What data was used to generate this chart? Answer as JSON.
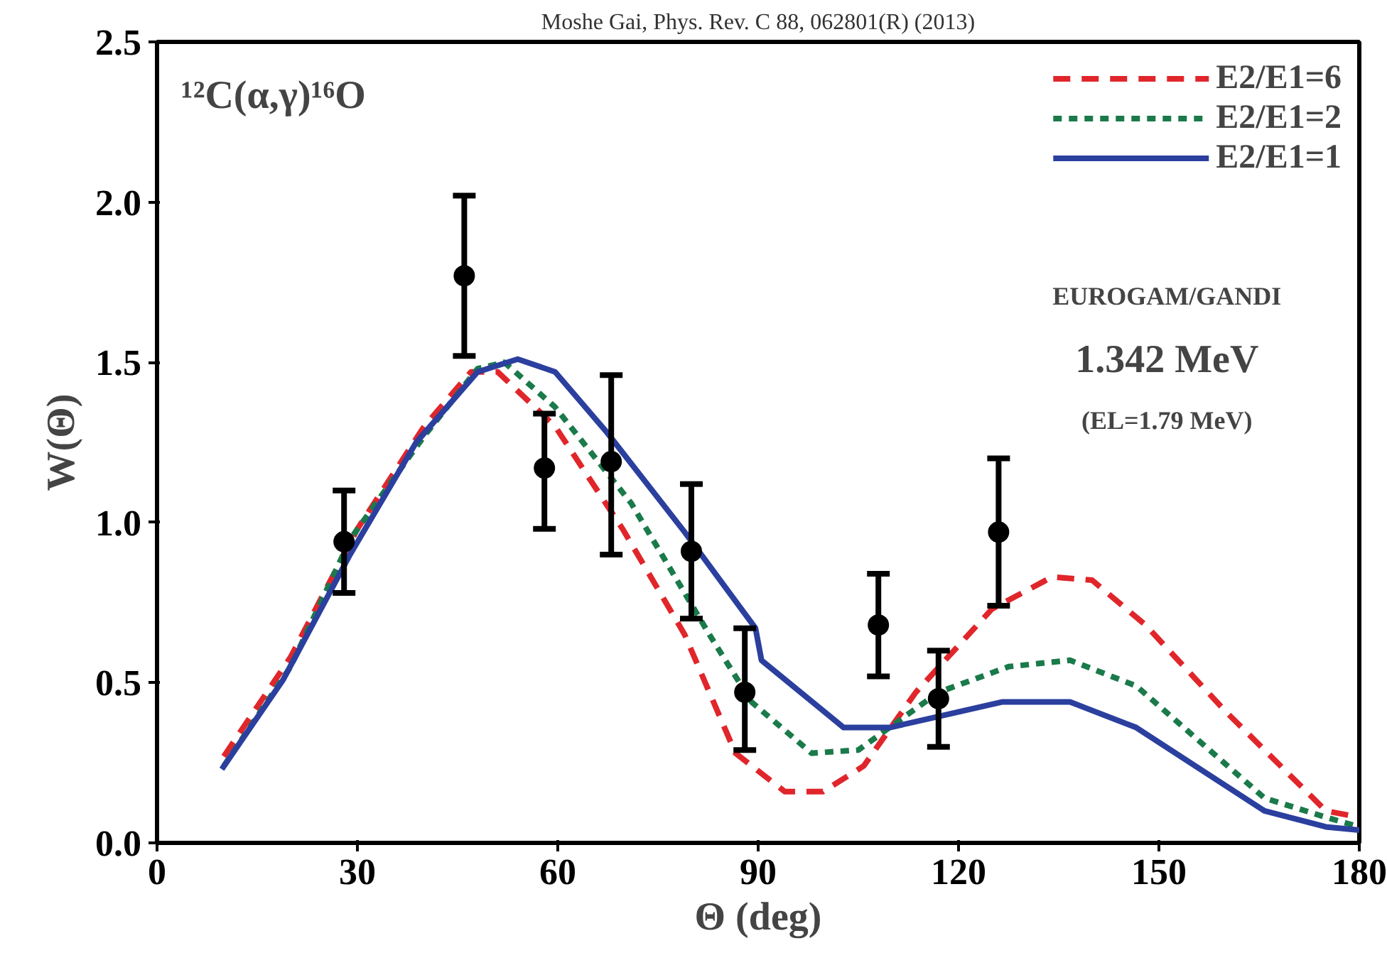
{
  "chart_data": {
    "type": "line",
    "title": "Moshe Gai, Phys. Rev. C 88, 062801(R) (2013)",
    "xlabel": "Θ (deg)",
    "ylabel": "W(Θ)",
    "xlim": [
      0,
      180
    ],
    "ylim": [
      0,
      2.5
    ],
    "xticks": [
      0,
      30,
      60,
      90,
      120,
      150,
      180
    ],
    "yticks": [
      {
        "value": 0,
        "label": "0.0"
      },
      {
        "value": 0.5,
        "label": "0.5"
      },
      {
        "value": 1,
        "label": "1.0"
      },
      {
        "value": 1.5,
        "label": "1.5"
      },
      {
        "value": 2,
        "label": "2.0"
      },
      {
        "value": 2.5,
        "label": "2.5"
      }
    ],
    "grid": false,
    "legend": "top right",
    "annotations": [
      "¹²C(α,γ)¹⁶O",
      "EUROGAM/GANDI",
      "1.342 MeV",
      "(EL=1.79 MeV)"
    ],
    "series": [
      {
        "name": "E2/E1=6",
        "color": "#e0262b",
        "line_style": "dashed",
        "x": [
          10,
          20,
          30,
          40,
          47,
          51,
          59.6,
          69.7,
          79,
          86.6,
          94,
          99.7,
          105.8,
          113.6,
          125,
          134,
          140,
          148,
          160,
          175,
          180
        ],
        "values": [
          0.27,
          0.58,
          0.98,
          1.3,
          1.47,
          1.47,
          1.3,
          0.98,
          0.65,
          0.28,
          0.16,
          0.16,
          0.24,
          0.47,
          0.73,
          0.83,
          0.82,
          0.68,
          0.41,
          0.1,
          0.08
        ]
      },
      {
        "name": "E2/E1=2",
        "color": "#1a7a4a",
        "line_style": "dotted",
        "x": [
          10,
          20,
          29,
          40,
          48,
          52,
          59.6,
          71,
          82.7,
          89,
          98,
          105,
          117,
          127.5,
          136.7,
          146.6,
          165.8,
          175,
          180
        ],
        "values": [
          0.24,
          0.55,
          0.95,
          1.27,
          1.48,
          1.5,
          1.36,
          1.06,
          0.65,
          0.44,
          0.28,
          0.29,
          0.47,
          0.55,
          0.57,
          0.49,
          0.14,
          0.08,
          0.05
        ]
      },
      {
        "name": "E2/E1=1",
        "color": "#2b3f9e",
        "line_style": "solid",
        "x": [
          9.7,
          18.9,
          28.9,
          38.8,
          48,
          54,
          59.6,
          67.4,
          79,
          89.6,
          90.5,
          102.8,
          109.7,
          126.6,
          136.7,
          146.6,
          165.8,
          175,
          180
        ],
        "values": [
          0.23,
          0.51,
          0.9,
          1.25,
          1.47,
          1.51,
          1.47,
          1.28,
          0.97,
          0.67,
          0.57,
          0.36,
          0.36,
          0.44,
          0.44,
          0.36,
          0.1,
          0.05,
          0.04
        ]
      },
      {
        "type": "scatter",
        "color": "#000000",
        "marker": "circle",
        "x": [
          28,
          46,
          58,
          68,
          80,
          88,
          108,
          117,
          126
        ],
        "values": [
          0.94,
          1.77,
          1.17,
          1.19,
          0.91,
          0.47,
          0.68,
          0.45,
          0.97
        ],
        "errors": [
          [
            0.78,
            1.1
          ],
          [
            1.52,
            2.02
          ],
          [
            0.98,
            1.34
          ],
          [
            0.9,
            1.46
          ],
          [
            0.7,
            1.12
          ],
          [
            0.29,
            0.67
          ],
          [
            0.52,
            0.84
          ],
          [
            0.3,
            0.6
          ],
          [
            0.74,
            1.2
          ]
        ]
      }
    ]
  }
}
